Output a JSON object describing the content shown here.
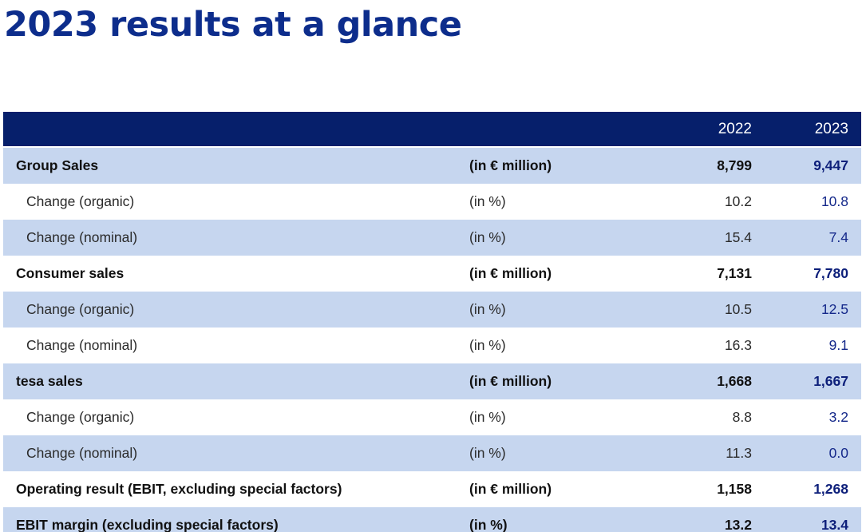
{
  "title": "2023 results at a glance",
  "table": {
    "years": [
      "2022",
      "2023"
    ],
    "rows": [
      {
        "label": "Group Sales",
        "unit": "(in € million)",
        "v2022": "8,799",
        "v2023": "9,447",
        "bold": true,
        "sub": false
      },
      {
        "label": "Change (organic)",
        "unit": "(in %)",
        "v2022": "10.2",
        "v2023": "10.8",
        "bold": false,
        "sub": true
      },
      {
        "label": "Change (nominal)",
        "unit": "(in %)",
        "v2022": "15.4",
        "v2023": "7.4",
        "bold": false,
        "sub": true
      },
      {
        "label": "Consumer sales",
        "unit": "(in € million)",
        "v2022": "7,131",
        "v2023": "7,780",
        "bold": true,
        "sub": false
      },
      {
        "label": "Change (organic)",
        "unit": "(in %)",
        "v2022": "10.5",
        "v2023": "12.5",
        "bold": false,
        "sub": true
      },
      {
        "label": "Change (nominal)",
        "unit": "(in %)",
        "v2022": "16.3",
        "v2023": "9.1",
        "bold": false,
        "sub": true
      },
      {
        "label": "tesa sales",
        "unit": "(in € million)",
        "v2022": "1,668",
        "v2023": "1,667",
        "bold": true,
        "sub": false
      },
      {
        "label": "Change (organic)",
        "unit": "(in %)",
        "v2022": "8.8",
        "v2023": "3.2",
        "bold": false,
        "sub": true
      },
      {
        "label": "Change (nominal)",
        "unit": "(in %)",
        "v2022": "11.3",
        "v2023": "0.0",
        "bold": false,
        "sub": true
      },
      {
        "label": "Operating result (EBIT, excluding special factors)",
        "unit": "(in € million)",
        "v2022": "1,158",
        "v2023": "1,268",
        "bold": true,
        "sub": false
      },
      {
        "label": "EBIT margin (excluding special factors)",
        "unit": "(in %)",
        "v2022": "13.2",
        "v2023": "13.4",
        "bold": true,
        "sub": false
      }
    ]
  },
  "colors": {
    "title": "#0d2d8c",
    "header_bg": "#061f6b",
    "shaded_row": "#c6d6ef",
    "value_2023": "#14288a"
  }
}
